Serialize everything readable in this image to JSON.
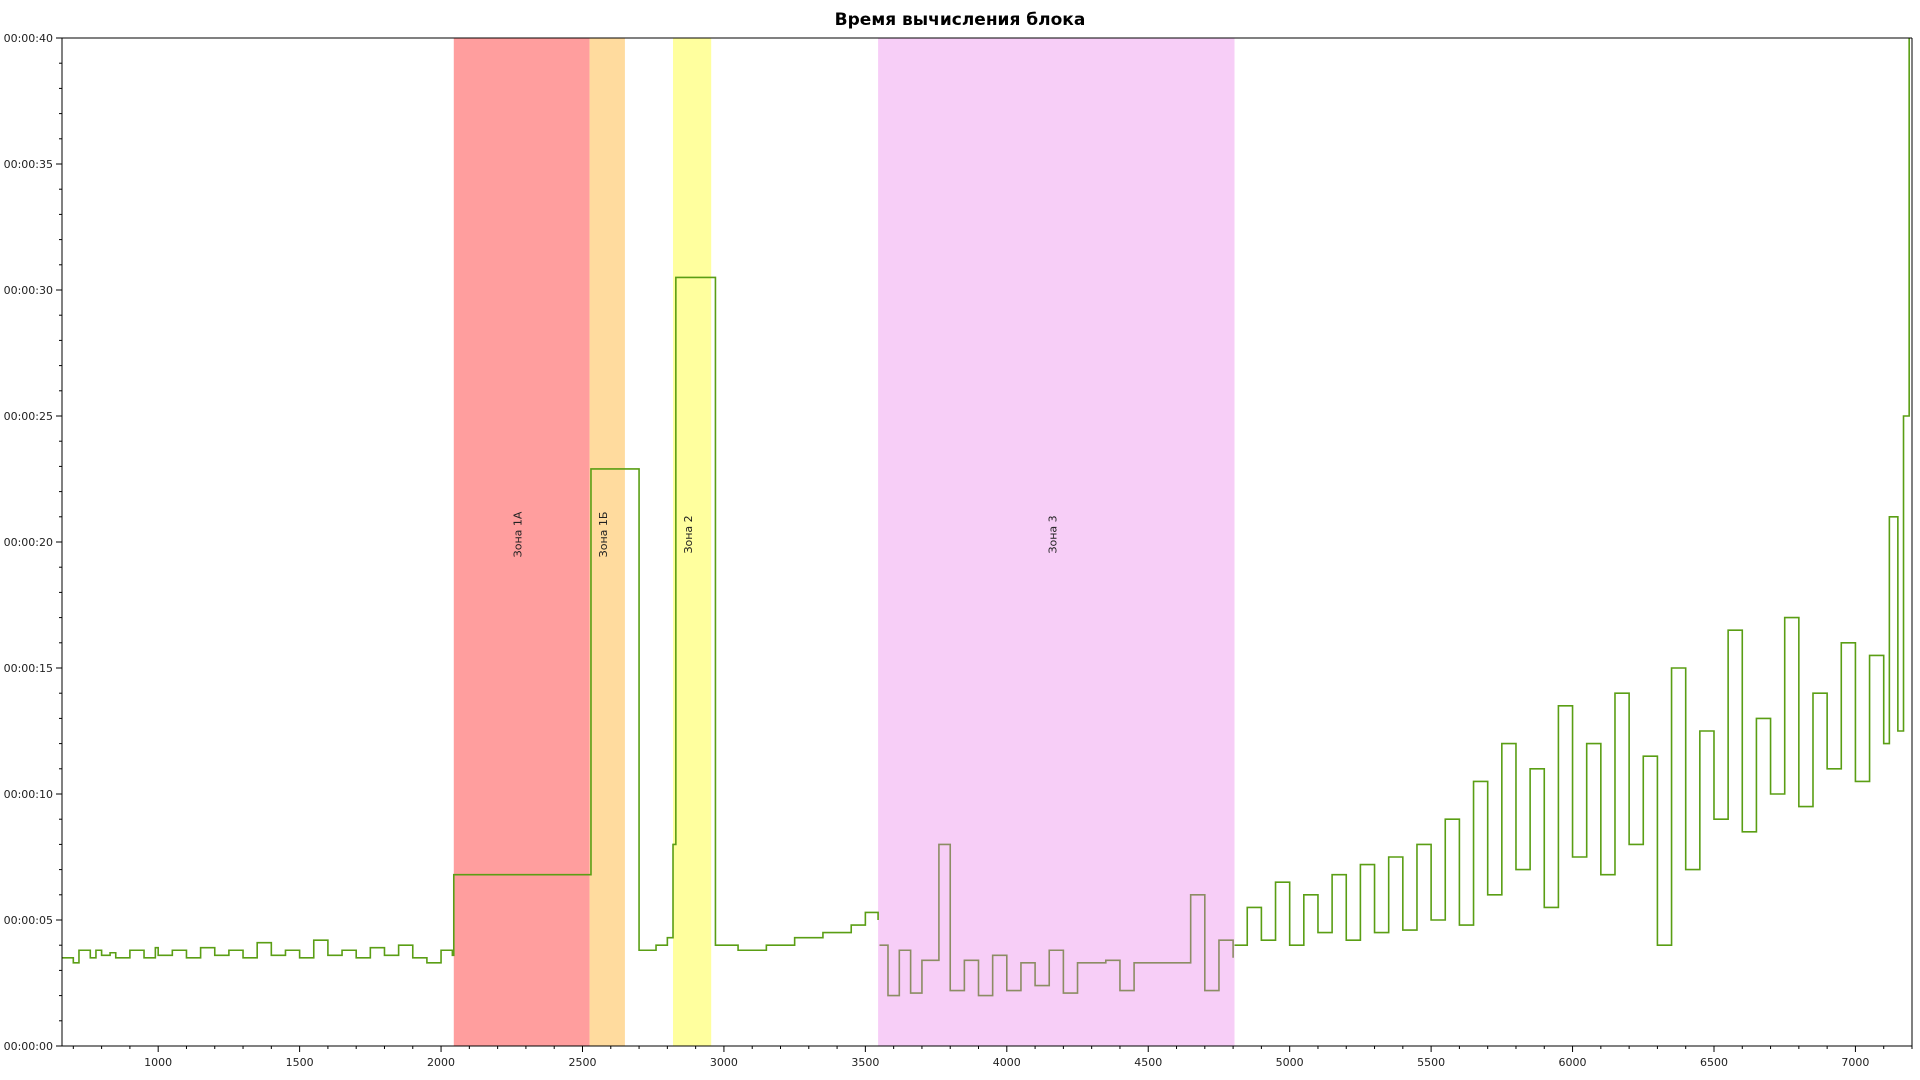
{
  "chart_data": {
    "type": "line",
    "title": "Время вычисления блока",
    "xlabel": "",
    "ylabel": "",
    "xlim": [
      660,
      7200
    ],
    "ylim": [
      0,
      40
    ],
    "grid": false,
    "legend": "none",
    "x_ticks": [
      1000,
      1500,
      2000,
      2500,
      3000,
      3500,
      4000,
      4500,
      5000,
      5500,
      6000,
      6500,
      7000
    ],
    "y_ticks": [
      {
        "value": 0,
        "label": "00:00:00"
      },
      {
        "value": 5,
        "label": "00:00:05"
      },
      {
        "value": 10,
        "label": "00:00:10"
      },
      {
        "value": 15,
        "label": "00:00:15"
      },
      {
        "value": 20,
        "label": "00:00:20"
      },
      {
        "value": 25,
        "label": "00:00:25"
      },
      {
        "value": 30,
        "label": "00:00:30"
      },
      {
        "value": 35,
        "label": "00:00:35"
      },
      {
        "value": 40,
        "label": "00:00:40"
      }
    ],
    "zones": [
      {
        "label": "Зона 1А",
        "x_start": 2045,
        "x_end": 2525,
        "color": "#ff9e9e"
      },
      {
        "label": "Зона 1Б",
        "x_start": 2525,
        "x_end": 2650,
        "color": "#ffdb9e"
      },
      {
        "label": "Зона 2",
        "x_start": 2820,
        "x_end": 2955,
        "color": "#ffff9e"
      },
      {
        "label": "Зона 3",
        "x_start": 3545,
        "x_end": 4805,
        "color": "#f7cef7"
      }
    ],
    "colors": {
      "series": "#5a9e14",
      "series_in_zone3": "#8c8c64",
      "axis": "#000000"
    },
    "series": [
      {
        "x": [
          660,
          700,
          720,
          760,
          780,
          800,
          830,
          850,
          900,
          950,
          990,
          1000,
          1050,
          1100,
          1150,
          1200,
          1250,
          1300,
          1350,
          1400,
          1450,
          1500,
          1550,
          1600,
          1650,
          1700,
          1750,
          1800,
          1850,
          1900,
          1950,
          2000,
          2040,
          2045,
          2525,
          2530,
          2650,
          2700,
          2760,
          2800,
          2820,
          2830,
          2955,
          2970,
          3050,
          3150,
          3250,
          3350,
          3450,
          3500,
          3545
        ],
        "y": [
          3.5,
          3.3,
          3.8,
          3.5,
          3.8,
          3.6,
          3.7,
          3.5,
          3.8,
          3.5,
          3.9,
          3.6,
          3.8,
          3.5,
          3.9,
          3.6,
          3.8,
          3.5,
          4.1,
          3.6,
          3.8,
          3.5,
          4.2,
          3.6,
          3.8,
          3.5,
          3.9,
          3.6,
          4.0,
          3.5,
          3.3,
          3.8,
          3.6,
          6.8,
          6.8,
          22.9,
          22.9,
          3.8,
          4.0,
          4.3,
          8.0,
          30.5,
          30.5,
          4.0,
          3.8,
          4.0,
          4.3,
          4.5,
          4.8,
          5.3,
          5.0
        ]
      },
      {
        "x": [
          3550,
          3580,
          3620,
          3660,
          3700,
          3760,
          3800,
          3850,
          3900,
          3950,
          4000,
          4050,
          4100,
          4150,
          4200,
          4250,
          4300,
          4350,
          4400,
          4450,
          4500,
          4550,
          4600,
          4650,
          4700,
          4750,
          4800
        ],
        "y": [
          4.0,
          2.0,
          3.8,
          2.1,
          3.4,
          8.0,
          2.2,
          3.4,
          2.0,
          3.6,
          2.2,
          3.3,
          2.4,
          3.8,
          2.1,
          3.3,
          3.3,
          3.4,
          2.2,
          3.3,
          3.3,
          3.3,
          3.3,
          6.0,
          2.2,
          4.2,
          3.5
        ]
      },
      {
        "x": [
          4805,
          4850,
          4900,
          4950,
          5000,
          5050,
          5100,
          5150,
          5200,
          5250,
          5300,
          5350,
          5400,
          5450,
          5500,
          5550,
          5600,
          5650,
          5700,
          5750,
          5800,
          5850,
          5900,
          5950,
          6000,
          6050,
          6100,
          6150,
          6200,
          6250,
          6300,
          6350,
          6400,
          6450,
          6500,
          6550,
          6600,
          6650,
          6700,
          6750,
          6800,
          6850,
          6900,
          6950,
          7000,
          7050,
          7100,
          7120,
          7150,
          7170,
          7190
        ],
        "y": [
          4.0,
          5.5,
          4.2,
          6.5,
          4.0,
          6.0,
          4.5,
          6.8,
          4.2,
          7.2,
          4.5,
          7.5,
          4.6,
          8.0,
          5.0,
          9.0,
          4.8,
          10.5,
          6.0,
          12.0,
          7.0,
          11.0,
          5.5,
          13.5,
          7.5,
          12.0,
          6.8,
          14.0,
          8.0,
          11.5,
          4.0,
          15.0,
          7.0,
          12.5,
          9.0,
          16.5,
          8.5,
          13.0,
          10.0,
          17.0,
          9.5,
          14.0,
          11.0,
          16.0,
          10.5,
          15.5,
          12.0,
          21.0,
          12.5,
          25.0,
          40.0
        ]
      }
    ]
  }
}
